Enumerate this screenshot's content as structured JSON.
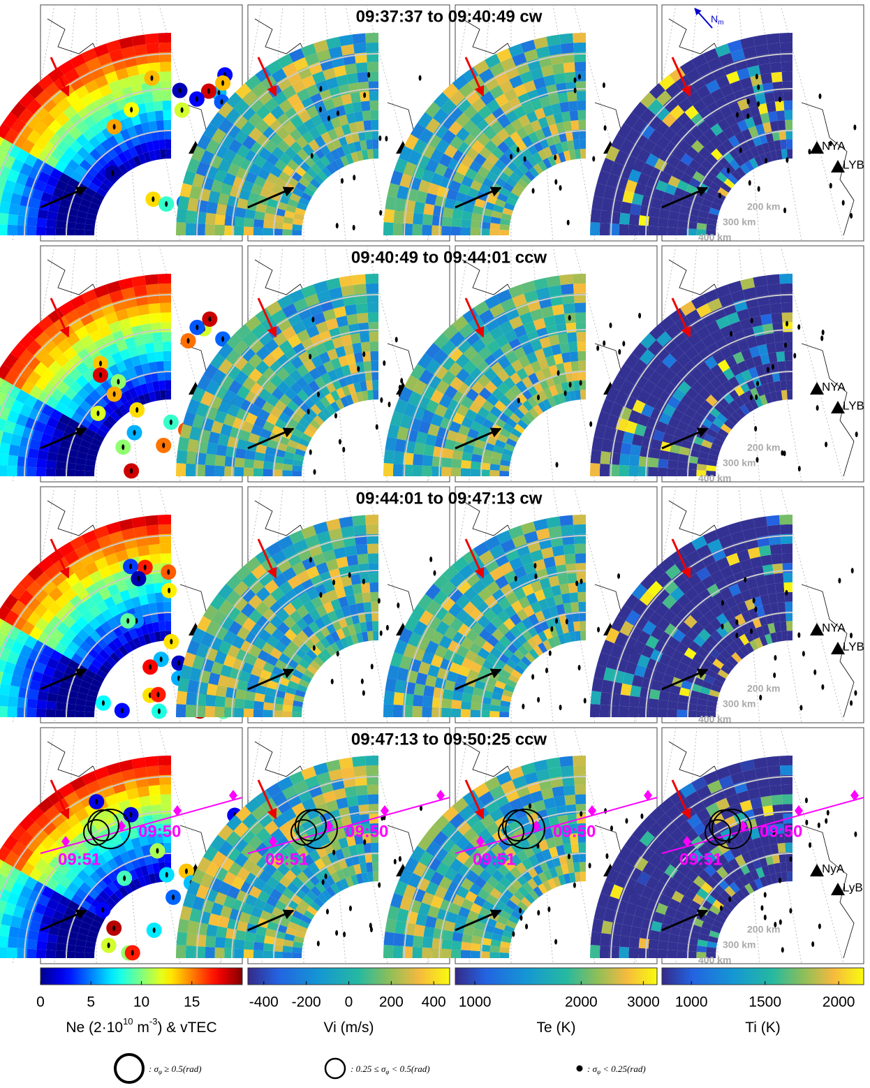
{
  "rows": [
    {
      "label": "S",
      "sub": "0",
      "title": "09:37:37 to 09:40:49 cw",
      "stations": [
        "NYA",
        "LYB"
      ]
    },
    {
      "label": "S",
      "sub": "1",
      "title": "09:40:49 to 09:44:01 ccw",
      "stations": [
        "NYA",
        "LYB"
      ]
    },
    {
      "label": "S",
      "sub": "2",
      "title": "09:44:01 to 09:47:13 cw",
      "stations": [
        "NYA",
        "LYB"
      ]
    },
    {
      "label": "S",
      "sub": "3",
      "title": "09:47:13 to 09:50:25 ccw",
      "stations": [
        "NyA",
        "LyB"
      ]
    }
  ],
  "north": {
    "label": "N",
    "sub": "m"
  },
  "ranges": [
    "200 km",
    "300 km",
    "400 km"
  ],
  "time_markers": [
    "09:50",
    "09:51"
  ],
  "colorbars": [
    {
      "cmap": "jet",
      "lim": [
        0,
        20
      ],
      "log": false,
      "ticks": [
        0,
        5,
        10,
        15
      ],
      "label": {
        "pre": "Ne (2·10",
        "sup1": "10",
        "mid": " m",
        "sup2": "-3",
        "post": ") & vTEC"
      }
    },
    {
      "cmap": "parula",
      "lim": [
        -475,
        475
      ],
      "log": false,
      "ticks": [
        -400,
        -200,
        0,
        200,
        400
      ],
      "label": {
        "pre": "Vi (m/s)"
      }
    },
    {
      "cmap": "parula",
      "lim": [
        880,
        3280
      ],
      "log": true,
      "ticks": [
        1000,
        2000,
        3000
      ],
      "label": {
        "pre": "Te (K)"
      }
    },
    {
      "cmap": "parula",
      "lim": [
        800,
        2170
      ],
      "log": false,
      "ticks": [
        1000,
        1500,
        2000
      ],
      "label": {
        "pre": "Ti (K)"
      }
    }
  ],
  "legend": [
    {
      "pre": ": σ",
      "sub": "φ",
      "post": " ≥ 0.5(rad)"
    },
    {
      "pre": ": 0.25 ≤ σ",
      "sub": "φ",
      "post": " < 0.5(rad)"
    },
    {
      "pre": ": σ",
      "sub": "φ",
      "post": " < 0.25(rad)"
    }
  ]
}
